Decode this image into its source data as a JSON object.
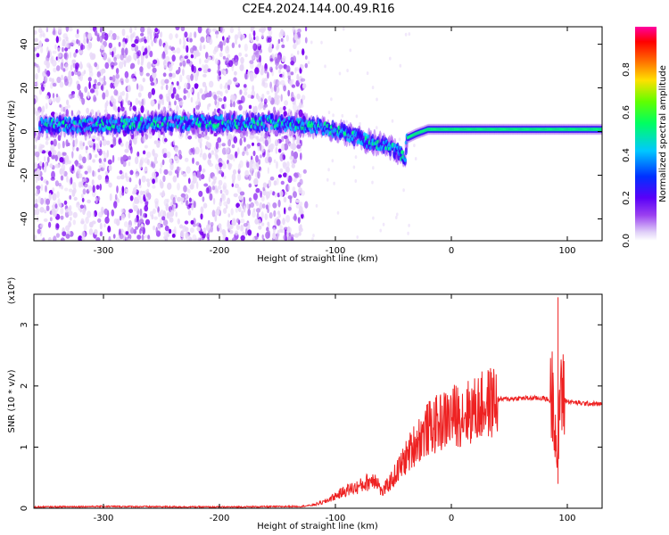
{
  "title": "C2E4.2024.144.00.49.R16",
  "charts": {
    "spectrogram": {
      "type": "heatmap",
      "xlabel": "Height of straight line (km)",
      "ylabel": "Frequency (Hz)",
      "xlim": [
        -360,
        130
      ],
      "ylim": [
        -50,
        48
      ],
      "xticks": [
        "-300",
        "-200",
        "-100",
        "0",
        "100"
      ],
      "yticks": [
        "40",
        "20",
        "0",
        "-20",
        "-40"
      ],
      "colorbar_label": "Normalized spectral amplitude",
      "colorbar_ticks": [
        "0.0",
        "0.2",
        "0.4",
        "0.6",
        "0.8"
      ],
      "colorbar_range": [
        0,
        1
      ],
      "ridge": {
        "x": [
          -350,
          -300,
          -250,
          -200,
          -150,
          -130,
          -110,
          -90,
          -75,
          -60,
          -50,
          -40,
          -38,
          -30,
          -20,
          0,
          40,
          80,
          90,
          100,
          130
        ],
        "y": [
          3,
          3,
          4,
          4,
          4,
          3,
          2,
          -1,
          -4,
          -6,
          -8,
          -12,
          -3,
          -1,
          1,
          1,
          1,
          1,
          1,
          1,
          1
        ]
      },
      "noise_extent_x": [
        -360,
        -125
      ],
      "colorscale": [
        "#ffffff",
        "#e8d8f8",
        "#b070f0",
        "#7a00f0",
        "#2000ff",
        "#00c8ff",
        "#00ff80",
        "#40ff00",
        "#ffe000",
        "#ff8000",
        "#ff0000",
        "#ff00a0"
      ]
    },
    "snr": {
      "type": "line",
      "xlabel": "Height of straight line (km)",
      "ylabel": "SNR (10 * v/v)",
      "yscale_label": "(x10⁴)",
      "xlim": [
        -360,
        130
      ],
      "ylim": [
        0,
        3.5
      ],
      "xticks": [
        "-300",
        "-200",
        "-100",
        "0",
        "100"
      ],
      "yticks": [
        "0",
        "1",
        "2",
        "3"
      ],
      "color": "#ee2222",
      "envelope": {
        "x": [
          -360,
          -300,
          -200,
          -130,
          -120,
          -110,
          -100,
          -90,
          -80,
          -75,
          -70,
          -65,
          -60,
          -50,
          -40,
          -30,
          -20,
          -10,
          0,
          10,
          20,
          30,
          40,
          60,
          80,
          86,
          88,
          90,
          92,
          94,
          96,
          100,
          110,
          130
        ],
        "y": [
          0.02,
          0.03,
          0.02,
          0.03,
          0.05,
          0.1,
          0.2,
          0.3,
          0.35,
          0.4,
          0.45,
          0.5,
          0.25,
          0.5,
          0.8,
          1.1,
          1.3,
          1.4,
          1.5,
          1.55,
          1.6,
          1.7,
          1.78,
          1.8,
          1.8,
          1.75,
          2.0,
          1.2,
          0.6,
          2.2,
          1.8,
          1.75,
          1.72,
          1.7
        ]
      }
    }
  }
}
